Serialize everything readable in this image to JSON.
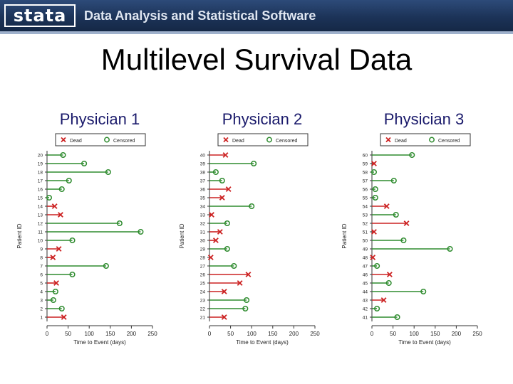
{
  "header": {
    "logo_text": "stata",
    "tagline": "Data Analysis and Statistical Software"
  },
  "slide": {
    "title": "Multilevel Survival Data"
  },
  "chart_data": [
    {
      "type": "scatter",
      "panel_title": "Physician 1",
      "xlabel": "Time to Event (days)",
      "ylabel": "Patient ID",
      "xlim": [
        0,
        250
      ],
      "xticks": [
        0,
        50,
        100,
        150,
        200,
        250
      ],
      "legend": {
        "position": "top",
        "entries": [
          {
            "name": "Dead",
            "marker": "x",
            "color": "#cc2222"
          },
          {
            "name": "Censored",
            "marker": "o",
            "color": "#2e8b2e"
          }
        ]
      },
      "patients": [
        {
          "id": "20",
          "time": 38,
          "status": "censored"
        },
        {
          "id": "19",
          "time": 88,
          "status": "censored"
        },
        {
          "id": "18",
          "time": 145,
          "status": "censored"
        },
        {
          "id": "17",
          "time": 52,
          "status": "censored"
        },
        {
          "id": "16",
          "time": 35,
          "status": "censored"
        },
        {
          "id": "15",
          "time": 5,
          "status": "censored"
        },
        {
          "id": "14",
          "time": 18,
          "status": "dead"
        },
        {
          "id": "13",
          "time": 32,
          "status": "dead"
        },
        {
          "id": "12",
          "time": 172,
          "status": "censored"
        },
        {
          "id": "11",
          "time": 222,
          "status": "censored"
        },
        {
          "id": "10",
          "time": 60,
          "status": "censored"
        },
        {
          "id": "9",
          "time": 28,
          "status": "dead"
        },
        {
          "id": "8",
          "time": 14,
          "status": "dead"
        },
        {
          "id": "7",
          "time": 140,
          "status": "censored"
        },
        {
          "id": "6",
          "time": 60,
          "status": "censored"
        },
        {
          "id": "5",
          "time": 22,
          "status": "dead"
        },
        {
          "id": "4",
          "time": 20,
          "status": "censored"
        },
        {
          "id": "3",
          "time": 15,
          "status": "censored"
        },
        {
          "id": "2",
          "time": 35,
          "status": "censored"
        },
        {
          "id": "1",
          "time": 40,
          "status": "dead"
        }
      ]
    },
    {
      "type": "scatter",
      "panel_title": "Physician 2",
      "xlabel": "Time to Event (days)",
      "ylabel": "Patient ID",
      "xlim": [
        0,
        250
      ],
      "xticks": [
        0,
        50,
        100,
        150,
        200,
        250
      ],
      "legend": {
        "position": "top",
        "entries": [
          {
            "name": "Dead",
            "marker": "x",
            "color": "#cc2222"
          },
          {
            "name": "Censored",
            "marker": "o",
            "color": "#2e8b2e"
          }
        ]
      },
      "patients": [
        {
          "id": "40",
          "time": 38,
          "status": "dead"
        },
        {
          "id": "39",
          "time": 105,
          "status": "censored"
        },
        {
          "id": "38",
          "time": 15,
          "status": "censored"
        },
        {
          "id": "37",
          "time": 30,
          "status": "censored"
        },
        {
          "id": "36",
          "time": 45,
          "status": "dead"
        },
        {
          "id": "35",
          "time": 30,
          "status": "dead"
        },
        {
          "id": "34",
          "time": 100,
          "status": "censored"
        },
        {
          "id": "33",
          "time": 5,
          "status": "dead"
        },
        {
          "id": "32",
          "time": 42,
          "status": "censored"
        },
        {
          "id": "31",
          "time": 25,
          "status": "dead"
        },
        {
          "id": "30",
          "time": 15,
          "status": "dead"
        },
        {
          "id": "29",
          "time": 42,
          "status": "censored"
        },
        {
          "id": "28",
          "time": 3,
          "status": "dead"
        },
        {
          "id": "27",
          "time": 58,
          "status": "censored"
        },
        {
          "id": "26",
          "time": 92,
          "status": "dead"
        },
        {
          "id": "25",
          "time": 72,
          "status": "dead"
        },
        {
          "id": "24",
          "time": 35,
          "status": "dead"
        },
        {
          "id": "23",
          "time": 88,
          "status": "censored"
        },
        {
          "id": "22",
          "time": 85,
          "status": "censored"
        },
        {
          "id": "21",
          "time": 35,
          "status": "dead"
        }
      ]
    },
    {
      "type": "scatter",
      "panel_title": "Physician 3",
      "xlabel": "Time to Event (days)",
      "ylabel": "Patient ID",
      "xlim": [
        0,
        250
      ],
      "xticks": [
        0,
        50,
        100,
        150,
        200,
        250
      ],
      "legend": {
        "position": "top",
        "entries": [
          {
            "name": "Dead",
            "marker": "x",
            "color": "#cc2222"
          },
          {
            "name": "Censored",
            "marker": "o",
            "color": "#2e8b2e"
          }
        ]
      },
      "patients": [
        {
          "id": "60",
          "time": 95,
          "status": "censored"
        },
        {
          "id": "59",
          "time": 5,
          "status": "dead"
        },
        {
          "id": "58",
          "time": 5,
          "status": "censored"
        },
        {
          "id": "57",
          "time": 52,
          "status": "censored"
        },
        {
          "id": "56",
          "time": 8,
          "status": "censored"
        },
        {
          "id": "55",
          "time": 8,
          "status": "censored"
        },
        {
          "id": "54",
          "time": 35,
          "status": "dead"
        },
        {
          "id": "53",
          "time": 57,
          "status": "censored"
        },
        {
          "id": "52",
          "time": 82,
          "status": "dead"
        },
        {
          "id": "51",
          "time": 5,
          "status": "dead"
        },
        {
          "id": "50",
          "time": 75,
          "status": "censored"
        },
        {
          "id": "49",
          "time": 185,
          "status": "censored"
        },
        {
          "id": "48",
          "time": 2,
          "status": "dead"
        },
        {
          "id": "47",
          "time": 12,
          "status": "censored"
        },
        {
          "id": "46",
          "time": 42,
          "status": "dead"
        },
        {
          "id": "45",
          "time": 40,
          "status": "censored"
        },
        {
          "id": "44",
          "time": 122,
          "status": "censored"
        },
        {
          "id": "43",
          "time": 28,
          "status": "dead"
        },
        {
          "id": "42",
          "time": 12,
          "status": "censored"
        },
        {
          "id": "41",
          "time": 60,
          "status": "censored"
        }
      ]
    }
  ]
}
